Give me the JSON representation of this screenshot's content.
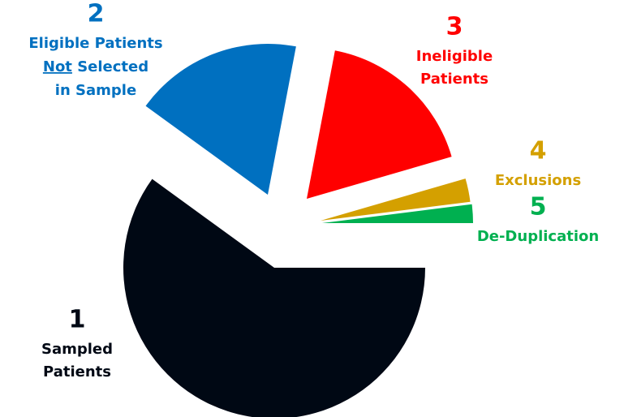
{
  "chart_data": {
    "type": "pie",
    "numbers": [
      "1",
      "2",
      "3",
      "4",
      "5"
    ],
    "categories": [
      [
        "Sampled",
        "Patients"
      ],
      [
        "Eligible Patients",
        [
          "Not",
          " Selected"
        ],
        "in Sample"
      ],
      [
        "Ineligible",
        "Patients"
      ],
      [
        "Exclusions"
      ],
      [
        "De-Duplication"
      ]
    ],
    "values": [
      60,
      18,
      17.5,
      2.5,
      2
    ],
    "colors": [
      "#000814",
      "#0070c0",
      "#ff0000",
      "#d4a000",
      "#00b050"
    ]
  }
}
